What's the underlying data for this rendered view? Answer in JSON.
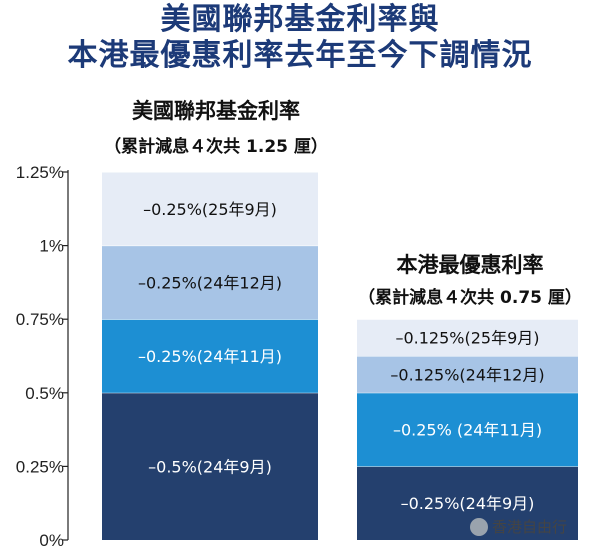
{
  "title_lines": [
    "美國聯邦基金利率與",
    "本港最優惠利率去年至今下調情況"
  ],
  "watermark": "香港自由行",
  "colors": {
    "title": "#1c3a78",
    "seg_lightest": "#e6ecf6",
    "seg_light": "#a7c4e6",
    "seg_mid": "#1d8fd3",
    "seg_dark": "#24406e"
  },
  "chart_data": {
    "type": "bar",
    "stacked": true,
    "y_unit": "%",
    "ylim": [
      0,
      1.25
    ],
    "yticks": [
      "1.25%",
      "1%",
      "0.75%",
      "0.5%",
      "0.25%",
      "0%"
    ],
    "groups": [
      {
        "title": "美國聯邦基金利率",
        "subtitle": "（累計減息４次共 1.25 厘）",
        "segments": [
          {
            "value": 0.5,
            "label": "–0.5%(24年9月)",
            "color": "#24406e",
            "text_color": "#ffffff"
          },
          {
            "value": 0.25,
            "label": "–0.25%(24年11月)",
            "color": "#1d8fd3",
            "text_color": "#ffffff"
          },
          {
            "value": 0.25,
            "label": "–0.25%(24年12月)",
            "color": "#a7c4e6",
            "text_color": "#111111"
          },
          {
            "value": 0.25,
            "label": "–0.25%(25年9月)",
            "color": "#e6ecf6",
            "text_color": "#111111"
          }
        ]
      },
      {
        "title": "本港最優惠利率",
        "subtitle": "（累計減息４次共 0.75 厘）",
        "segments": [
          {
            "value": 0.25,
            "label": "–0.25%(24年9月)",
            "color": "#24406e",
            "text_color": "#ffffff"
          },
          {
            "value": 0.25,
            "label": "–0.25% (24年11月)",
            "color": "#1d8fd3",
            "text_color": "#ffffff"
          },
          {
            "value": 0.125,
            "label": "–0.125%(24年12月)",
            "color": "#a7c4e6",
            "text_color": "#111111"
          },
          {
            "value": 0.125,
            "label": "–0.125%(25年9月)",
            "color": "#e6ecf6",
            "text_color": "#111111"
          }
        ]
      }
    ]
  }
}
